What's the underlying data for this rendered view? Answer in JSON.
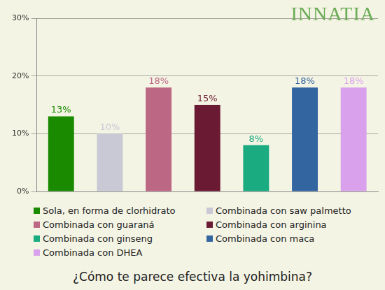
{
  "chart_data": {
    "type": "bar",
    "title": "¿Cómo te parece efectiva la yohimbina?",
    "annotations": [
      "INNATIA"
    ],
    "categories": [
      "Sola, en forma de clorhidrato",
      "Combinada con saw palmetto",
      "Combinada con guaraná",
      "Combinada con arginina",
      "Combinada con ginseng",
      "Combinada con maca",
      "Combinada con DHEA"
    ],
    "values": [
      13,
      10,
      18,
      15,
      8,
      18,
      18
    ],
    "value_labels": [
      "13%",
      "10%",
      "18%",
      "15%",
      "8%",
      "18%",
      "18%"
    ],
    "colors": [
      "#1a8a00",
      "#c9c9d6",
      "#bc6784",
      "#6b1a33",
      "#1aab80",
      "#3366a1",
      "#d9a1ec"
    ],
    "ylim": [
      0,
      30
    ],
    "yticks": [
      {
        "value": 0,
        "label": "0%"
      },
      {
        "value": 10,
        "label": "10%"
      },
      {
        "value": 20,
        "label": "20%"
      },
      {
        "value": 30,
        "label": "30%"
      }
    ],
    "grid": true,
    "legend": "bottom",
    "data_labels": true,
    "tick_labels": "y"
  }
}
